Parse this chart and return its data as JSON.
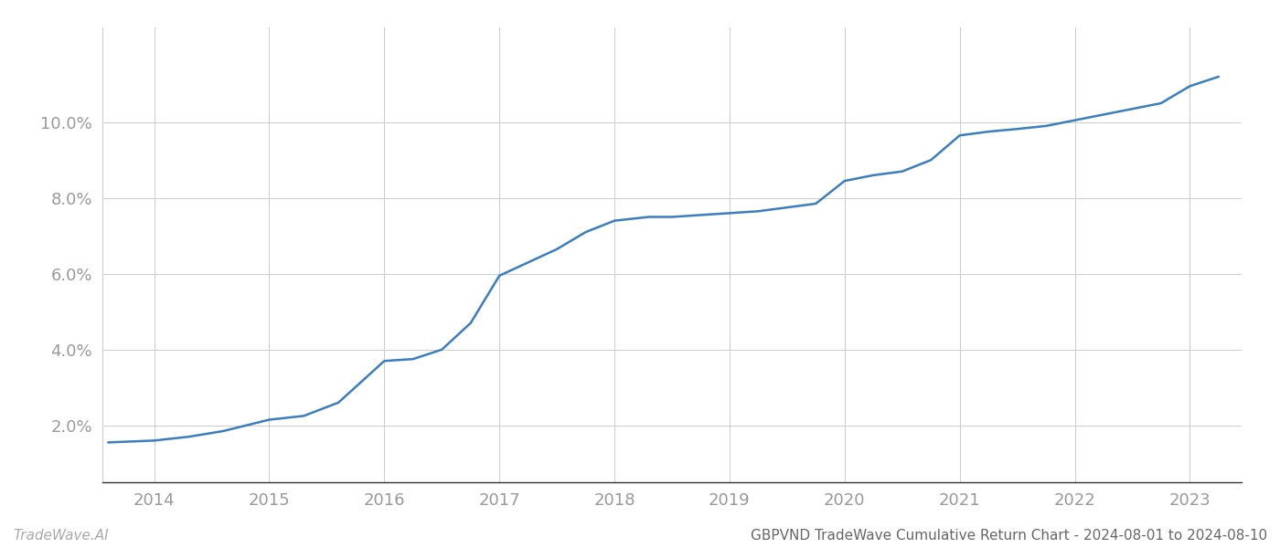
{
  "x_years": [
    2013.6,
    2014.0,
    2014.3,
    2014.6,
    2015.0,
    2015.3,
    2015.6,
    2016.0,
    2016.25,
    2016.5,
    2016.75,
    2017.0,
    2017.25,
    2017.5,
    2017.75,
    2018.0,
    2018.15,
    2018.3,
    2018.5,
    2018.75,
    2019.0,
    2019.25,
    2019.5,
    2019.75,
    2020.0,
    2020.25,
    2020.5,
    2020.75,
    2021.0,
    2021.25,
    2021.5,
    2021.75,
    2022.0,
    2022.25,
    2022.5,
    2022.75,
    2023.0,
    2023.25
  ],
  "y_values": [
    1.55,
    1.6,
    1.7,
    1.85,
    2.15,
    2.25,
    2.6,
    3.7,
    3.75,
    4.0,
    4.7,
    5.95,
    6.3,
    6.65,
    7.1,
    7.4,
    7.45,
    7.5,
    7.5,
    7.55,
    7.6,
    7.65,
    7.75,
    7.85,
    8.45,
    8.6,
    8.7,
    9.0,
    9.65,
    9.75,
    9.82,
    9.9,
    10.05,
    10.2,
    10.35,
    10.5,
    10.95,
    11.2
  ],
  "line_color": "#3a7ebf",
  "line_width": 1.8,
  "xlim": [
    2013.55,
    2023.45
  ],
  "ylim": [
    0.5,
    12.5
  ],
  "yticks": [
    2.0,
    4.0,
    6.0,
    8.0,
    10.0
  ],
  "xticks": [
    2014,
    2015,
    2016,
    2017,
    2018,
    2019,
    2020,
    2021,
    2022,
    2023
  ],
  "grid_color": "#cccccc",
  "grid_linewidth": 0.7,
  "background_color": "#ffffff",
  "watermark_text": "TradeWave.AI",
  "watermark_fontsize": 11,
  "watermark_color": "#aaaaaa",
  "footer_text": "GBPVND TradeWave Cumulative Return Chart - 2024-08-01 to 2024-08-10",
  "footer_fontsize": 11,
  "footer_color": "#666666",
  "tick_label_color": "#999999",
  "tick_fontsize": 13,
  "left_spine_color": "#cccccc",
  "bottom_spine_color": "#333333"
}
